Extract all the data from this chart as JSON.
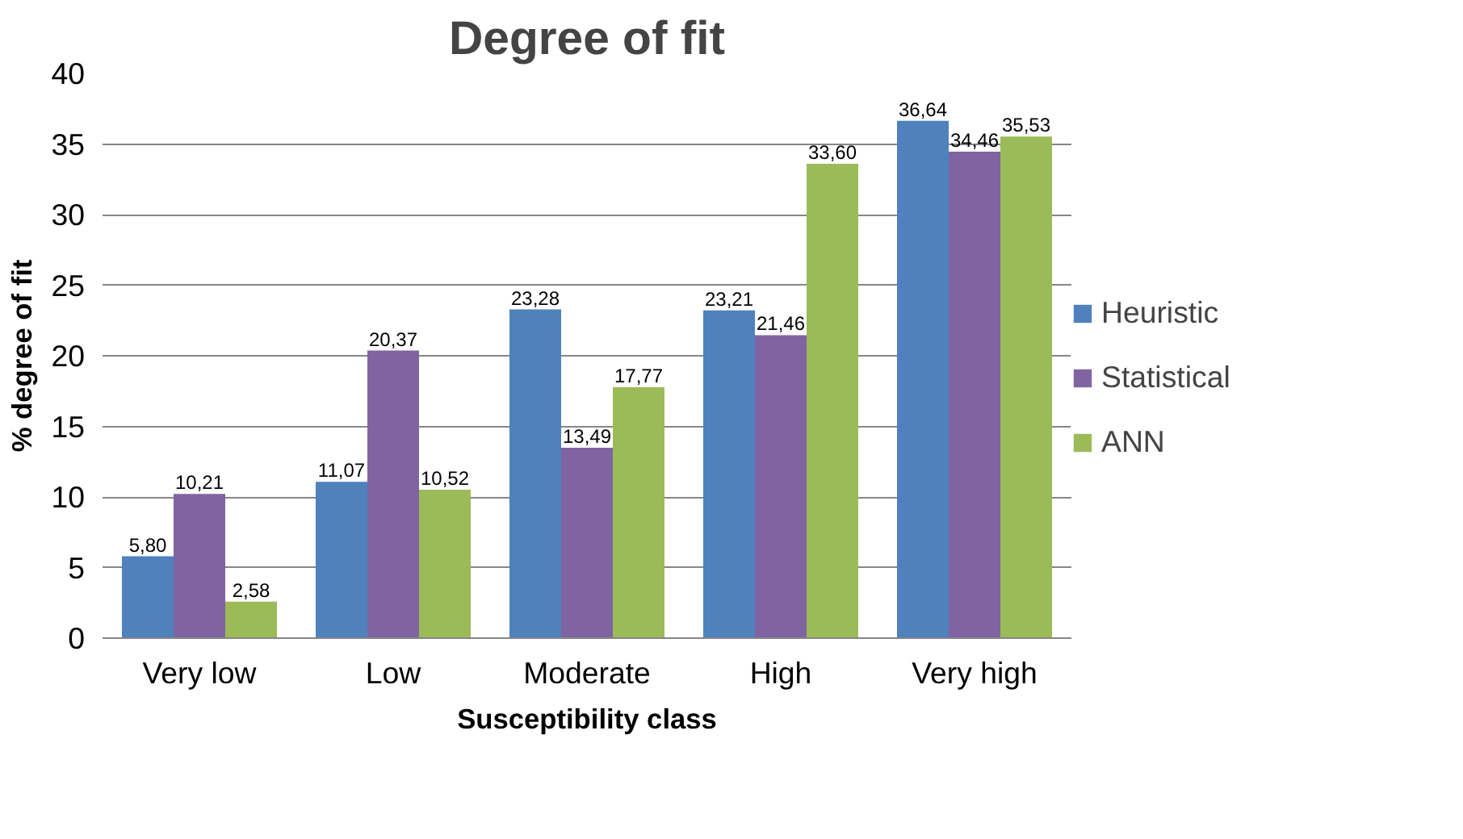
{
  "chart_data": {
    "type": "bar",
    "title": "Degree of fit",
    "xlabel": "Susceptibility class",
    "ylabel": "% degree of fit",
    "categories": [
      "Very low",
      "Low",
      "Moderate",
      "High",
      "Very high"
    ],
    "series": [
      {
        "name": "Heuristic",
        "color": "#4f81bd",
        "values": [
          5.8,
          11.07,
          23.28,
          23.21,
          36.64
        ],
        "value_labels": [
          "5,80",
          "11,07",
          "23,28",
          "23,21",
          "36,64"
        ]
      },
      {
        "name": "Statistical",
        "color": "#8064a2",
        "values": [
          10.21,
          20.37,
          13.49,
          21.46,
          34.46
        ],
        "value_labels": [
          "10,21",
          "20,37",
          "13,49",
          "21,46",
          "34,46"
        ]
      },
      {
        "name": "ANN",
        "color": "#9bbb59",
        "values": [
          2.58,
          10.52,
          17.77,
          33.6,
          35.53
        ],
        "value_labels": [
          "2,58",
          "10,52",
          "17,77",
          "33,60",
          "35,53"
        ]
      }
    ],
    "ylim": [
      0,
      40
    ],
    "yticks": [
      0,
      5,
      10,
      15,
      20,
      25,
      30,
      35,
      40
    ],
    "grid": "y",
    "legend": "right"
  }
}
